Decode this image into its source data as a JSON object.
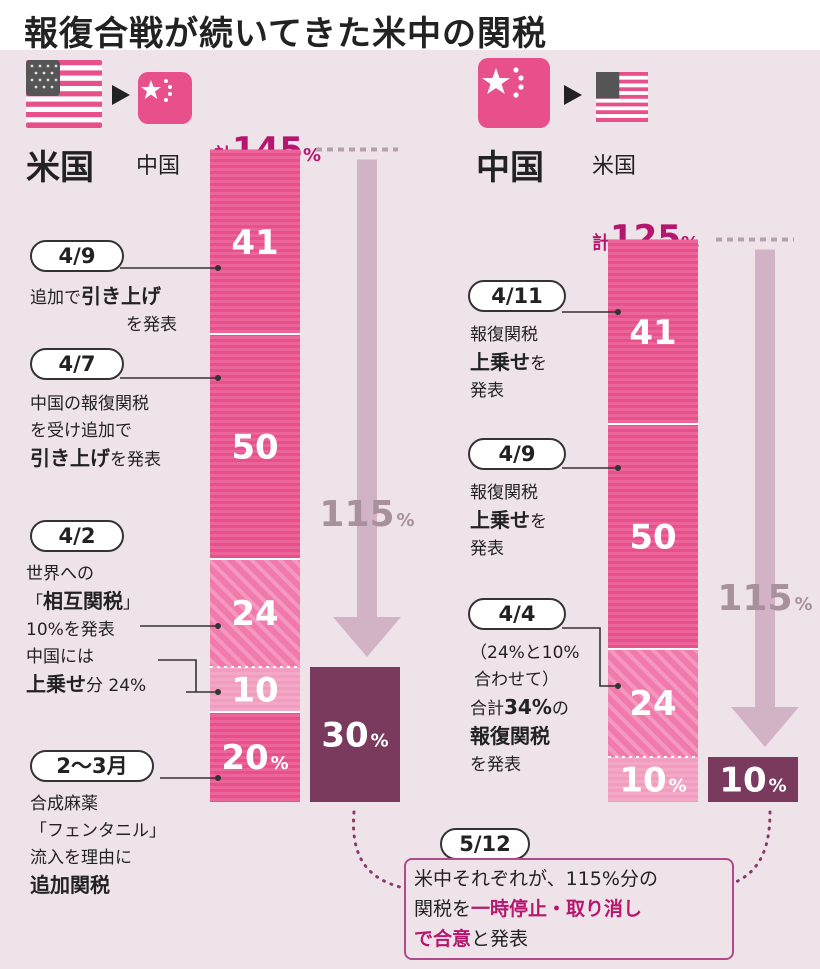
{
  "title": "報復合戦が続いてきた米中の関税",
  "colors": {
    "bar_dark": "#e8508c",
    "bar_light": "#f39cc0",
    "result": "#7a3a5e",
    "arrow": "#d2b3c5",
    "accent": "#b5166e"
  },
  "chart_data": [
    {
      "type": "bar",
      "from": "米国",
      "to": "中国",
      "total_prefix": "計",
      "total_value": "145",
      "total_unit": "%",
      "segments": [
        {
          "value": 20,
          "label": "20",
          "unit": "%",
          "style": "solid"
        },
        {
          "value": 10,
          "label": "10",
          "unit": "",
          "style": "light"
        },
        {
          "value": 24,
          "label": "24",
          "unit": "",
          "style": "hatched"
        },
        {
          "value": 50,
          "label": "50",
          "unit": "",
          "style": "solid"
        },
        {
          "value": 41,
          "label": "41",
          "unit": "",
          "style": "solid"
        }
      ],
      "reduction": {
        "value": 115,
        "label": "115",
        "unit": "%"
      },
      "result": {
        "value": 30,
        "label": "30",
        "unit": "%"
      },
      "events": [
        {
          "date": "4/9",
          "lines": [
            "追加で[引き上げ]",
            "を発表"
          ]
        },
        {
          "date": "4/7",
          "lines": [
            "中国の報復関税",
            "を受け追加で",
            "[引き上げ]を発表"
          ]
        },
        {
          "date": "4/2",
          "lines": [
            "世界への",
            "「[相互関税]」",
            "10%を発表",
            "中国には",
            "[上乗せ]分 24%"
          ]
        },
        {
          "date": "2〜3月",
          "lines": [
            "合成麻薬",
            "「フェンタニル」",
            "流入を理由に",
            "[追加関税]"
          ]
        }
      ]
    },
    {
      "type": "bar",
      "from": "中国",
      "to": "米国",
      "total_prefix": "計",
      "total_value": "125",
      "total_unit": "%",
      "segments": [
        {
          "value": 10,
          "label": "10",
          "unit": "%",
          "style": "light"
        },
        {
          "value": 24,
          "label": "24",
          "unit": "",
          "style": "hatched"
        },
        {
          "value": 50,
          "label": "50",
          "unit": "",
          "style": "solid"
        },
        {
          "value": 41,
          "label": "41",
          "unit": "",
          "style": "solid"
        }
      ],
      "reduction": {
        "value": 115,
        "label": "115",
        "unit": "%"
      },
      "result": {
        "value": 10,
        "label": "10",
        "unit": "%"
      },
      "events": [
        {
          "date": "4/11",
          "lines": [
            "報復関税",
            "[上乗せ]を",
            "発表"
          ]
        },
        {
          "date": "4/9",
          "lines": [
            "報復関税",
            "[上乗せ]を",
            "発表"
          ]
        },
        {
          "date": "4/4",
          "lines": [
            "（24%と10%",
            "合わせて）",
            "合計[34%]の",
            "[報復関税]",
            "を発表"
          ]
        }
      ]
    }
  ],
  "agreement": {
    "date": "5/12",
    "line1": "米中それぞれが、115%分の",
    "line2_pre": "関税を",
    "line2_hl": "一時停止・取り消し",
    "line3_hl": "で合意",
    "line3_post": "と発表"
  }
}
